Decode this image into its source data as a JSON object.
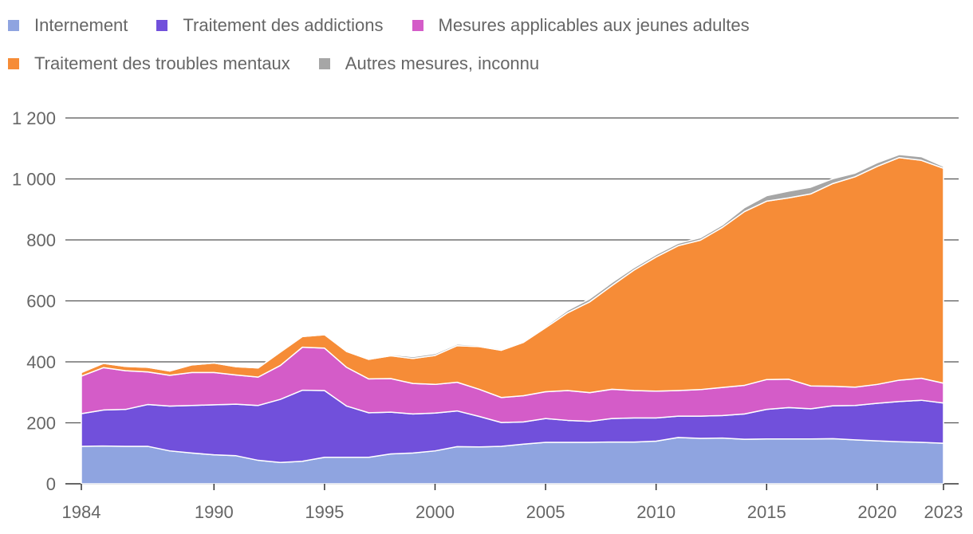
{
  "chart_data": {
    "type": "area",
    "stacked": true,
    "x": [
      1984,
      1985,
      1986,
      1987,
      1988,
      1989,
      1990,
      1991,
      1992,
      1993,
      1994,
      1995,
      1996,
      1997,
      1998,
      1999,
      2000,
      2001,
      2002,
      2003,
      2004,
      2005,
      2006,
      2007,
      2008,
      2009,
      2010,
      2011,
      2012,
      2013,
      2014,
      2015,
      2016,
      2017,
      2018,
      2019,
      2020,
      2021,
      2022,
      2023
    ],
    "x_ticks": [
      1984,
      1990,
      1995,
      2000,
      2005,
      2010,
      2015,
      2020,
      2023
    ],
    "y_ticks": [
      0,
      200,
      400,
      600,
      800,
      1000,
      1200
    ],
    "y_tick_labels": [
      "0",
      "200",
      "400",
      "600",
      "800",
      "1 000",
      "1 200"
    ],
    "ylim": [
      0,
      1200
    ],
    "grid": true,
    "legend_position": "top-left",
    "series": [
      {
        "name": "Internement",
        "color": "#8fa4e0",
        "values": [
          123,
          124,
          123,
          123,
          108,
          101,
          95,
          92,
          77,
          70,
          74,
          87,
          87,
          87,
          98,
          101,
          108,
          122,
          121,
          123,
          130,
          136,
          136,
          136,
          137,
          137,
          140,
          152,
          149,
          150,
          146,
          147,
          147,
          147,
          148,
          144,
          141,
          138,
          136,
          133
        ]
      },
      {
        "name": "Traitement des addictions",
        "color": "#7150db",
        "values": [
          107,
          118,
          121,
          137,
          147,
          156,
          164,
          169,
          180,
          207,
          233,
          219,
          168,
          146,
          137,
          128,
          124,
          117,
          100,
          78,
          73,
          78,
          72,
          69,
          77,
          79,
          76,
          70,
          73,
          74,
          83,
          97,
          103,
          99,
          108,
          113,
          123,
          132,
          138,
          132
        ]
      },
      {
        "name": "Mesures applicables aux jeunes adultes",
        "color": "#d45cc8",
        "values": [
          123,
          139,
          127,
          107,
          101,
          108,
          106,
          96,
          93,
          111,
          141,
          139,
          127,
          111,
          110,
          100,
          94,
          94,
          89,
          82,
          86,
          88,
          98,
          94,
          96,
          90,
          88,
          84,
          87,
          92,
          94,
          98,
          93,
          75,
          64,
          60,
          62,
          70,
          72,
          65
        ]
      },
      {
        "name": "Traitement des troubles mentaux",
        "color": "#f68c37",
        "values": [
          12,
          14,
          14,
          15,
          14,
          25,
          31,
          27,
          30,
          44,
          35,
          44,
          52,
          64,
          75,
          82,
          95,
          120,
          140,
          155,
          175,
          210,
          255,
          298,
          340,
          395,
          440,
          475,
          490,
          525,
          570,
          585,
          595,
          630,
          665,
          690,
          715,
          730,
          715,
          705
        ]
      },
      {
        "name": "Autres mesures, inconnu",
        "color": "#a6a6a6",
        "values": [
          1,
          1,
          1,
          1,
          1,
          1,
          1,
          1,
          1,
          1,
          1,
          1,
          1,
          1,
          4,
          6,
          6,
          5,
          4,
          4,
          4,
          5,
          8,
          10,
          10,
          8,
          8,
          8,
          8,
          8,
          13,
          18,
          22,
          22,
          16,
          12,
          12,
          10,
          12,
          6
        ]
      }
    ]
  }
}
